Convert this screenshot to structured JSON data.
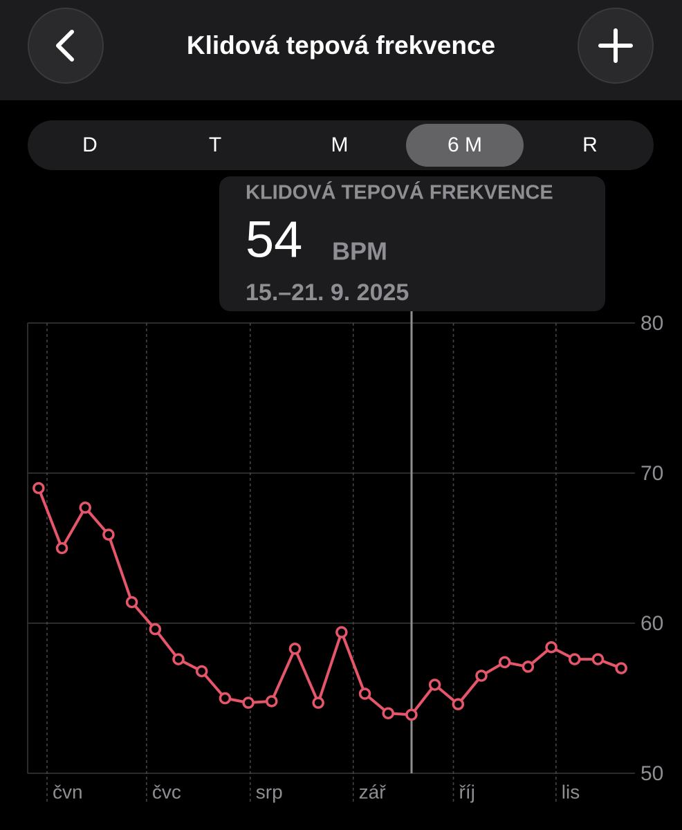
{
  "header": {
    "title": "Klidová tepová frekvence"
  },
  "segments": [
    "D",
    "T",
    "M",
    "6 M",
    "R"
  ],
  "tooltip": {
    "label": "KLIDOVÁ TEPOVÁ FREKVENCE",
    "value": 54,
    "unit": "BPM",
    "date": "15.–21. 9. 2025"
  },
  "chart_data": {
    "type": "line",
    "x": [
      0,
      1,
      2,
      3,
      4,
      5,
      6,
      7,
      8,
      9,
      10,
      11,
      12,
      13,
      14,
      15,
      16,
      17,
      18,
      19,
      20,
      21,
      22,
      23,
      24,
      25
    ],
    "values": [
      69.0,
      65.0,
      67.7,
      65.9,
      61.4,
      59.6,
      57.6,
      56.8,
      55.0,
      54.7,
      54.8,
      58.3,
      54.7,
      59.4,
      55.3,
      54.0,
      53.9,
      55.9,
      54.6,
      56.5,
      57.4,
      57.1,
      58.4,
      57.6,
      57.6,
      57.0
    ],
    "color": "#e5566a",
    "xlim": [
      -0.47,
      25.53
    ],
    "xticks": [
      {
        "value": 0.36,
        "label": "čvn"
      },
      {
        "value": 4.63,
        "label": "čvc"
      },
      {
        "value": 9.08,
        "label": "srp"
      },
      {
        "value": 13.5,
        "label": "zář"
      },
      {
        "value": 17.8,
        "label": "říj"
      },
      {
        "value": 22.2,
        "label": "lis"
      }
    ],
    "ylim": [
      50,
      80
    ],
    "yticks": [
      50,
      60,
      70,
      80
    ],
    "grid": true
  }
}
